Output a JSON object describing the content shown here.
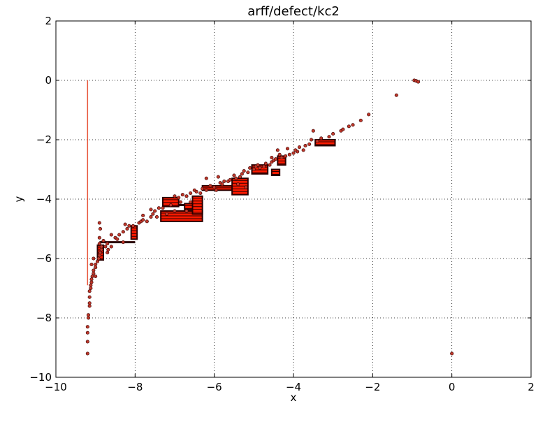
{
  "chart_data": {
    "type": "scatter",
    "title": "arff/defect/kc2",
    "xlabel": "x",
    "ylabel": "y",
    "xlim": [
      -10,
      2
    ],
    "ylim": [
      -10,
      2
    ],
    "grid": true,
    "x_ticks": [
      -10,
      -8,
      -6,
      -4,
      -2,
      0,
      2
    ],
    "y_ticks": [
      -10,
      -8,
      -6,
      -4,
      -2,
      0,
      2
    ],
    "x_tick_labels": [
      "−10",
      "−8",
      "−6",
      "−4",
      "−2",
      "0",
      "2"
    ],
    "y_tick_labels": [
      "−10",
      "−8",
      "−6",
      "−4",
      "−2",
      "0",
      "2"
    ],
    "colors": {
      "point_fill": "#c0392b",
      "point_edge": "#3a0000",
      "line": "#e8553a",
      "dense_fill": "#ff1a00",
      "block_edge": "#2a0000"
    },
    "vertical_line": {
      "x": -9.2,
      "y_from": 0.0,
      "y_to": -6.9
    },
    "horizontal_segments": [
      {
        "x1": -8.9,
        "x2": -8.0,
        "y": -5.45
      },
      {
        "x1": -7.0,
        "x2": -6.4,
        "y": -4.2
      }
    ],
    "dense_blocks": [
      {
        "x1": -8.95,
        "x2": -8.8,
        "y1": -6.05,
        "y2": -5.55
      },
      {
        "x1": -8.1,
        "x2": -7.95,
        "y1": -5.35,
        "y2": -4.9
      },
      {
        "x1": -7.35,
        "x2": -6.3,
        "y1": -4.75,
        "y2": -4.4
      },
      {
        "x1": -7.3,
        "x2": -6.9,
        "y1": -4.25,
        "y2": -3.95
      },
      {
        "x1": -6.75,
        "x2": -6.5,
        "y1": -4.35,
        "y2": -4.15
      },
      {
        "x1": -6.55,
        "x2": -6.3,
        "y1": -4.5,
        "y2": -3.9
      },
      {
        "x1": -6.3,
        "x2": -5.55,
        "y1": -3.7,
        "y2": -3.55
      },
      {
        "x1": -5.55,
        "x2": -5.15,
        "y1": -3.85,
        "y2": -3.3
      },
      {
        "x1": -5.05,
        "x2": -4.65,
        "y1": -3.15,
        "y2": -2.85
      },
      {
        "x1": -4.55,
        "x2": -4.35,
        "y1": -3.2,
        "y2": -3.0
      },
      {
        "x1": -4.4,
        "x2": -4.2,
        "y1": -2.85,
        "y2": -2.55
      },
      {
        "x1": -3.45,
        "x2": -2.95,
        "y1": -2.2,
        "y2": -2.0
      }
    ],
    "points": [
      [
        -9.2,
        -9.2
      ],
      [
        -9.2,
        -8.8
      ],
      [
        -9.2,
        -8.5
      ],
      [
        -9.2,
        -8.3
      ],
      [
        -9.18,
        -8.0
      ],
      [
        -9.18,
        -7.9
      ],
      [
        -9.15,
        -7.6
      ],
      [
        -9.15,
        -7.5
      ],
      [
        -9.15,
        -7.3
      ],
      [
        -9.15,
        -7.1
      ],
      [
        -9.12,
        -7.0
      ],
      [
        -9.12,
        -6.9
      ],
      [
        -9.1,
        -6.8
      ],
      [
        -9.1,
        -6.7
      ],
      [
        -9.08,
        -6.6
      ],
      [
        -9.05,
        -6.5
      ],
      [
        -9.05,
        -6.4
      ],
      [
        -9.0,
        -6.3
      ],
      [
        -9.0,
        -6.2
      ],
      [
        -9.1,
        -6.2
      ],
      [
        -8.95,
        -6.1
      ],
      [
        -8.92,
        -6.0
      ],
      [
        -8.9,
        -5.9
      ],
      [
        -8.88,
        -5.8
      ],
      [
        -8.85,
        -5.7
      ],
      [
        -8.85,
        -5.6
      ],
      [
        -8.9,
        -5.5
      ],
      [
        -8.8,
        -5.4
      ],
      [
        -8.75,
        -5.6
      ],
      [
        -8.7,
        -5.8
      ],
      [
        -8.68,
        -5.7
      ],
      [
        -8.6,
        -5.6
      ],
      [
        -8.9,
        -5.3
      ],
      [
        -8.88,
        -5.0
      ],
      [
        -8.9,
        -4.8
      ],
      [
        -8.6,
        -5.2
      ],
      [
        -8.5,
        -5.3
      ],
      [
        -8.4,
        -5.2
      ],
      [
        -8.3,
        -5.1
      ],
      [
        -8.2,
        -5.0
      ],
      [
        -8.15,
        -4.9
      ],
      [
        -8.25,
        -4.85
      ],
      [
        -8.05,
        -4.9
      ],
      [
        -7.9,
        -4.8
      ],
      [
        -7.85,
        -4.75
      ],
      [
        -7.8,
        -4.7
      ],
      [
        -7.7,
        -4.75
      ],
      [
        -7.6,
        -4.6
      ],
      [
        -7.55,
        -4.5
      ],
      [
        -7.5,
        -4.4
      ],
      [
        -7.45,
        -4.6
      ],
      [
        -7.4,
        -4.3
      ],
      [
        -7.3,
        -4.3
      ],
      [
        -7.2,
        -4.5
      ],
      [
        -7.1,
        -4.2
      ],
      [
        -7.0,
        -3.9
      ],
      [
        -6.9,
        -3.95
      ],
      [
        -6.85,
        -4.1
      ],
      [
        -6.8,
        -3.85
      ],
      [
        -6.7,
        -3.9
      ],
      [
        -6.6,
        -3.8
      ],
      [
        -6.5,
        -3.7
      ],
      [
        -6.45,
        -3.75
      ],
      [
        -6.35,
        -3.8
      ],
      [
        -6.3,
        -3.65
      ],
      [
        -6.2,
        -3.7
      ],
      [
        -6.1,
        -3.55
      ],
      [
        -6.0,
        -3.6
      ],
      [
        -5.95,
        -3.7
      ],
      [
        -5.85,
        -3.45
      ],
      [
        -5.8,
        -3.5
      ],
      [
        -5.75,
        -3.4
      ],
      [
        -5.65,
        -3.4
      ],
      [
        -5.6,
        -3.35
      ],
      [
        -5.5,
        -3.2
      ],
      [
        -5.45,
        -3.3
      ],
      [
        -5.35,
        -3.25
      ],
      [
        -5.3,
        -3.15
      ],
      [
        -5.25,
        -3.05
      ],
      [
        -5.15,
        -3.1
      ],
      [
        -5.1,
        -2.95
      ],
      [
        -5.0,
        -3.0
      ],
      [
        -4.95,
        -2.9
      ],
      [
        -4.9,
        -2.85
      ],
      [
        -4.85,
        -2.95
      ],
      [
        -4.75,
        -2.9
      ],
      [
        -4.7,
        -2.8
      ],
      [
        -4.6,
        -2.85
      ],
      [
        -4.55,
        -2.75
      ],
      [
        -4.5,
        -2.7
      ],
      [
        -4.45,
        -2.65
      ],
      [
        -4.35,
        -2.5
      ],
      [
        -4.3,
        -2.6
      ],
      [
        -4.2,
        -2.55
      ],
      [
        -4.1,
        -2.5
      ],
      [
        -4.0,
        -2.45
      ],
      [
        -3.9,
        -2.4
      ],
      [
        -3.85,
        -2.25
      ],
      [
        -3.75,
        -2.35
      ],
      [
        -3.7,
        -2.2
      ],
      [
        -3.6,
        -2.15
      ],
      [
        -3.55,
        -2.0
      ],
      [
        -3.5,
        -1.7
      ],
      [
        -3.4,
        -2.05
      ],
      [
        -3.3,
        -1.95
      ],
      [
        -3.1,
        -1.9
      ],
      [
        -3.0,
        -1.8
      ],
      [
        -2.8,
        -1.7
      ],
      [
        -2.75,
        -1.65
      ],
      [
        -2.6,
        -1.55
      ],
      [
        -2.5,
        -1.5
      ],
      [
        -2.3,
        -1.35
      ],
      [
        -2.1,
        -1.15
      ],
      [
        -1.4,
        -0.5
      ],
      [
        -0.95,
        0.0
      ],
      [
        -0.9,
        -0.02
      ],
      [
        -0.85,
        -0.05
      ],
      [
        0.0,
        -9.2
      ],
      [
        -6.2,
        -3.3
      ],
      [
        -5.9,
        -3.25
      ],
      [
        -4.4,
        -2.35
      ],
      [
        -4.15,
        -2.3
      ],
      [
        -4.55,
        -2.6
      ],
      [
        -3.95,
        -2.35
      ],
      [
        -5.4,
        -3.5
      ],
      [
        -5.2,
        -3.6
      ],
      [
        -6.6,
        -4.1
      ],
      [
        -6.7,
        -4.4
      ],
      [
        -7.0,
        -4.4
      ],
      [
        -7.6,
        -4.35
      ],
      [
        -7.8,
        -4.55
      ],
      [
        -8.3,
        -5.45
      ],
      [
        -8.45,
        -5.35
      ],
      [
        -8.7,
        -5.5
      ],
      [
        -9.05,
        -6.0
      ],
      [
        -9.0,
        -6.6
      ]
    ]
  }
}
